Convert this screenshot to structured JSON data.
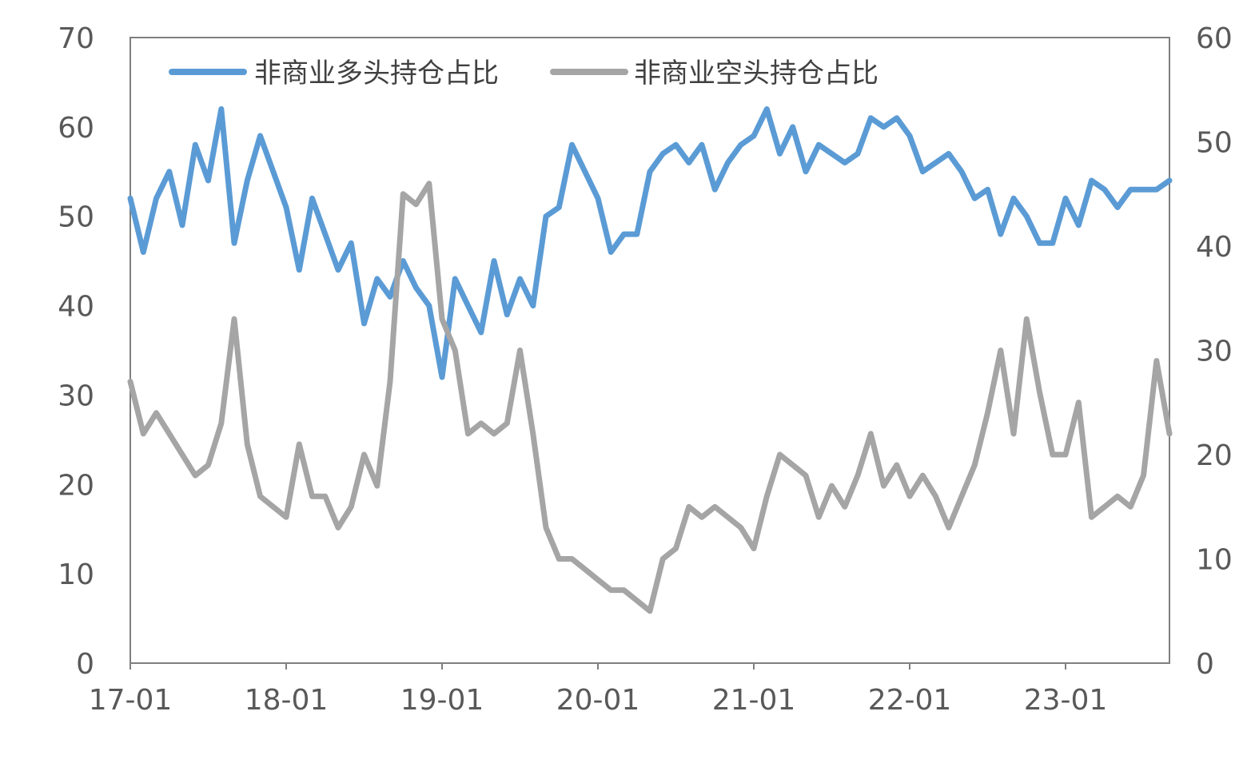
{
  "chart_data": {
    "type": "line",
    "title": "",
    "xlabel": "",
    "ylabel": "",
    "x_tick_labels": [
      "17-01",
      "18-01",
      "19-01",
      "20-01",
      "21-01",
      "22-01",
      "23-01"
    ],
    "x_range": [
      "2017-01",
      "2023-09"
    ],
    "y_left": {
      "ticks": [
        "0",
        "10",
        "20",
        "30",
        "40",
        "50",
        "60",
        "70"
      ],
      "range": [
        0,
        70
      ]
    },
    "y_right": {
      "ticks": [
        "0",
        "10",
        "20",
        "30",
        "40",
        "50",
        "60"
      ],
      "range": [
        0,
        60
      ]
    },
    "grid": false,
    "legend_position": "top",
    "series": [
      {
        "name": "非商业多头持仓占比",
        "axis": "left",
        "color": "#5B9BD5",
        "points": [
          [
            "2017-01",
            52
          ],
          [
            "2017-02",
            46
          ],
          [
            "2017-03",
            52
          ],
          [
            "2017-04",
            55
          ],
          [
            "2017-05",
            49
          ],
          [
            "2017-06",
            58
          ],
          [
            "2017-07",
            54
          ],
          [
            "2017-08",
            62
          ],
          [
            "2017-09",
            47
          ],
          [
            "2017-10",
            54
          ],
          [
            "2017-11",
            59
          ],
          [
            "2017-12",
            55
          ],
          [
            "2018-01",
            51
          ],
          [
            "2018-02",
            44
          ],
          [
            "2018-03",
            52
          ],
          [
            "2018-04",
            48
          ],
          [
            "2018-05",
            44
          ],
          [
            "2018-06",
            47
          ],
          [
            "2018-07",
            38
          ],
          [
            "2018-08",
            43
          ],
          [
            "2018-09",
            41
          ],
          [
            "2018-10",
            45
          ],
          [
            "2018-11",
            42
          ],
          [
            "2018-12",
            40
          ],
          [
            "2019-01",
            32
          ],
          [
            "2019-02",
            43
          ],
          [
            "2019-03",
            40
          ],
          [
            "2019-04",
            37
          ],
          [
            "2019-05",
            45
          ],
          [
            "2019-06",
            39
          ],
          [
            "2019-07",
            43
          ],
          [
            "2019-08",
            40
          ],
          [
            "2019-09",
            50
          ],
          [
            "2019-10",
            51
          ],
          [
            "2019-11",
            58
          ],
          [
            "2019-12",
            55
          ],
          [
            "2020-01",
            52
          ],
          [
            "2020-02",
            46
          ],
          [
            "2020-03",
            48
          ],
          [
            "2020-04",
            48
          ],
          [
            "2020-05",
            55
          ],
          [
            "2020-06",
            57
          ],
          [
            "2020-07",
            58
          ],
          [
            "2020-08",
            56
          ],
          [
            "2020-09",
            58
          ],
          [
            "2020-10",
            53
          ],
          [
            "2020-11",
            56
          ],
          [
            "2020-12",
            58
          ],
          [
            "2021-01",
            59
          ],
          [
            "2021-02",
            62
          ],
          [
            "2021-03",
            57
          ],
          [
            "2021-04",
            60
          ],
          [
            "2021-05",
            55
          ],
          [
            "2021-06",
            58
          ],
          [
            "2021-07",
            57
          ],
          [
            "2021-08",
            56
          ],
          [
            "2021-09",
            57
          ],
          [
            "2021-10",
            61
          ],
          [
            "2021-11",
            60
          ],
          [
            "2021-12",
            61
          ],
          [
            "2022-01",
            59
          ],
          [
            "2022-02",
            55
          ],
          [
            "2022-03",
            56
          ],
          [
            "2022-04",
            57
          ],
          [
            "2022-05",
            55
          ],
          [
            "2022-06",
            52
          ],
          [
            "2022-07",
            53
          ],
          [
            "2022-08",
            48
          ],
          [
            "2022-09",
            52
          ],
          [
            "2022-10",
            50
          ],
          [
            "2022-11",
            47
          ],
          [
            "2022-12",
            47
          ],
          [
            "2023-01",
            52
          ],
          [
            "2023-02",
            49
          ],
          [
            "2023-03",
            54
          ],
          [
            "2023-04",
            53
          ],
          [
            "2023-05",
            51
          ],
          [
            "2023-06",
            53
          ],
          [
            "2023-07",
            53
          ],
          [
            "2023-08",
            53
          ],
          [
            "2023-09",
            54
          ]
        ]
      },
      {
        "name": "非商业空头持仓占比",
        "axis": "right",
        "color": "#A5A5A5",
        "points": [
          [
            "2017-01",
            27
          ],
          [
            "2017-02",
            22
          ],
          [
            "2017-03",
            24
          ],
          [
            "2017-04",
            22
          ],
          [
            "2017-05",
            20
          ],
          [
            "2017-06",
            18
          ],
          [
            "2017-07",
            19
          ],
          [
            "2017-08",
            23
          ],
          [
            "2017-09",
            33
          ],
          [
            "2017-10",
            21
          ],
          [
            "2017-11",
            16
          ],
          [
            "2017-12",
            15
          ],
          [
            "2018-01",
            14
          ],
          [
            "2018-02",
            21
          ],
          [
            "2018-03",
            16
          ],
          [
            "2018-04",
            16
          ],
          [
            "2018-05",
            13
          ],
          [
            "2018-06",
            15
          ],
          [
            "2018-07",
            20
          ],
          [
            "2018-08",
            17
          ],
          [
            "2018-09",
            27
          ],
          [
            "2018-10",
            45
          ],
          [
            "2018-11",
            44
          ],
          [
            "2018-12",
            46
          ],
          [
            "2019-01",
            33
          ],
          [
            "2019-02",
            30
          ],
          [
            "2019-03",
            22
          ],
          [
            "2019-04",
            23
          ],
          [
            "2019-05",
            22
          ],
          [
            "2019-06",
            23
          ],
          [
            "2019-07",
            30
          ],
          [
            "2019-08",
            22
          ],
          [
            "2019-09",
            13
          ],
          [
            "2019-10",
            10
          ],
          [
            "2019-11",
            10
          ],
          [
            "2019-12",
            9
          ],
          [
            "2020-01",
            8
          ],
          [
            "2020-02",
            7
          ],
          [
            "2020-03",
            7
          ],
          [
            "2020-04",
            6
          ],
          [
            "2020-05",
            5
          ],
          [
            "2020-06",
            10
          ],
          [
            "2020-07",
            11
          ],
          [
            "2020-08",
            15
          ],
          [
            "2020-09",
            14
          ],
          [
            "2020-10",
            15
          ],
          [
            "2020-11",
            14
          ],
          [
            "2020-12",
            13
          ],
          [
            "2021-01",
            11
          ],
          [
            "2021-02",
            16
          ],
          [
            "2021-03",
            20
          ],
          [
            "2021-04",
            19
          ],
          [
            "2021-05",
            18
          ],
          [
            "2021-06",
            14
          ],
          [
            "2021-07",
            17
          ],
          [
            "2021-08",
            15
          ],
          [
            "2021-09",
            18
          ],
          [
            "2021-10",
            22
          ],
          [
            "2021-11",
            17
          ],
          [
            "2021-12",
            19
          ],
          [
            "2022-01",
            16
          ],
          [
            "2022-02",
            18
          ],
          [
            "2022-03",
            16
          ],
          [
            "2022-04",
            13
          ],
          [
            "2022-05",
            16
          ],
          [
            "2022-06",
            19
          ],
          [
            "2022-07",
            24
          ],
          [
            "2022-08",
            30
          ],
          [
            "2022-09",
            22
          ],
          [
            "2022-10",
            33
          ],
          [
            "2022-11",
            26
          ],
          [
            "2022-12",
            20
          ],
          [
            "2023-01",
            20
          ],
          [
            "2023-02",
            25
          ],
          [
            "2023-03",
            14
          ],
          [
            "2023-04",
            15
          ],
          [
            "2023-05",
            16
          ],
          [
            "2023-06",
            15
          ],
          [
            "2023-07",
            18
          ],
          [
            "2023-08",
            29
          ],
          [
            "2023-09",
            22
          ]
        ]
      }
    ]
  }
}
